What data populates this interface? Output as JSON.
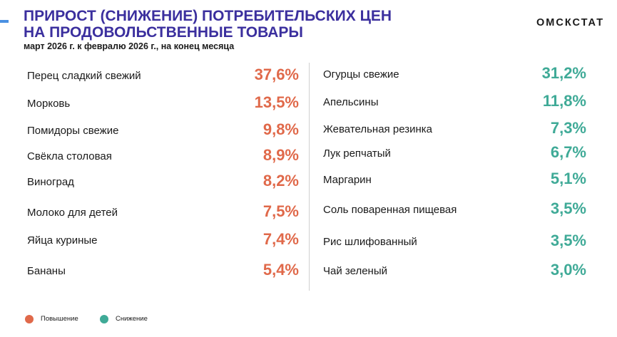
{
  "header": {
    "title_line1": "ПРИРОСТ (СНИЖЕНИЕ) ПОТРЕБИТЕЛЬСКИХ ЦЕН",
    "title_line2": "НА ПРОДОВОЛЬСТВЕННЫЕ ТОВАРЫ",
    "subtitle": "март 2026 г. к февралю 2026 г., на конец месяца",
    "brand": "ОМСКСТАТ"
  },
  "colors": {
    "increase": "#e0694a",
    "decrease": "#3faa97",
    "title": "#3b2f9e"
  },
  "increase_items": [
    {
      "name": "Перец сладкий свежий",
      "value": "37,6%"
    },
    {
      "name": "Морковь",
      "value": "13,5%"
    },
    {
      "name": "Помидоры свежие",
      "value": "9,8%"
    },
    {
      "name": "Свёкла столовая",
      "value": "8,9%"
    },
    {
      "name": "Виноград",
      "value": "8,2%"
    },
    {
      "name": "Молоко для детей",
      "value": "7,5%"
    },
    {
      "name": "Яйца куриные",
      "value": "7,4%"
    },
    {
      "name": "Бананы",
      "value": "5,4%"
    }
  ],
  "decrease_items": [
    {
      "name": "Огурцы свежие",
      "value": "31,2%"
    },
    {
      "name": "Апельсины",
      "value": "11,8%"
    },
    {
      "name": "Жевательная резинка",
      "value": "7,3%"
    },
    {
      "name": "Лук репчатый",
      "value": "6,7%"
    },
    {
      "name": "Маргарин",
      "value": "5,1%"
    },
    {
      "name": "Соль поваренная пищевая",
      "value": "3,5%"
    },
    {
      "name": "Рис шлифованный",
      "value": "3,5%"
    },
    {
      "name": "Чай зеленый",
      "value": "3,0%"
    }
  ],
  "legend": {
    "increase_label": "Повышение",
    "decrease_label": "Снижение"
  }
}
